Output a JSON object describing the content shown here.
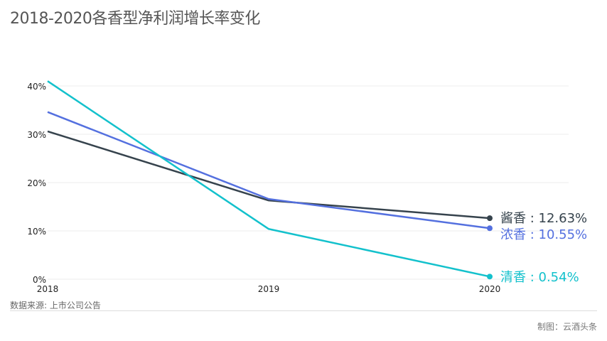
{
  "title": "2018-2020各香型净利润增长率变化",
  "source": "数据来源: 上市公司公告",
  "credit": "制图：云酒头条",
  "chart_data": {
    "type": "line",
    "title": "2018-2020各香型净利润增长率变化",
    "xlabel": "",
    "ylabel": "",
    "x": [
      "2018",
      "2019",
      "2020"
    ],
    "ylim": [
      0,
      40
    ],
    "yticks": [
      0,
      10,
      20,
      30,
      40
    ],
    "ytick_labels": [
      "0%",
      "10%",
      "20%",
      "30%",
      "40%"
    ],
    "grid": true,
    "legend": "end-of-line labels (right)",
    "series": [
      {
        "name": "酱香",
        "values": [
          30.6,
          16.3,
          12.63
        ],
        "color": "#36434d",
        "label": "酱香 : 12.63%"
      },
      {
        "name": "浓香",
        "values": [
          34.6,
          16.6,
          10.55
        ],
        "color": "#5470df",
        "label": "浓香 : 10.55%"
      },
      {
        "name": "清香",
        "values": [
          41.0,
          10.4,
          0.54
        ],
        "color": "#13c1cc",
        "label": "清香 : 0.54%"
      }
    ]
  }
}
